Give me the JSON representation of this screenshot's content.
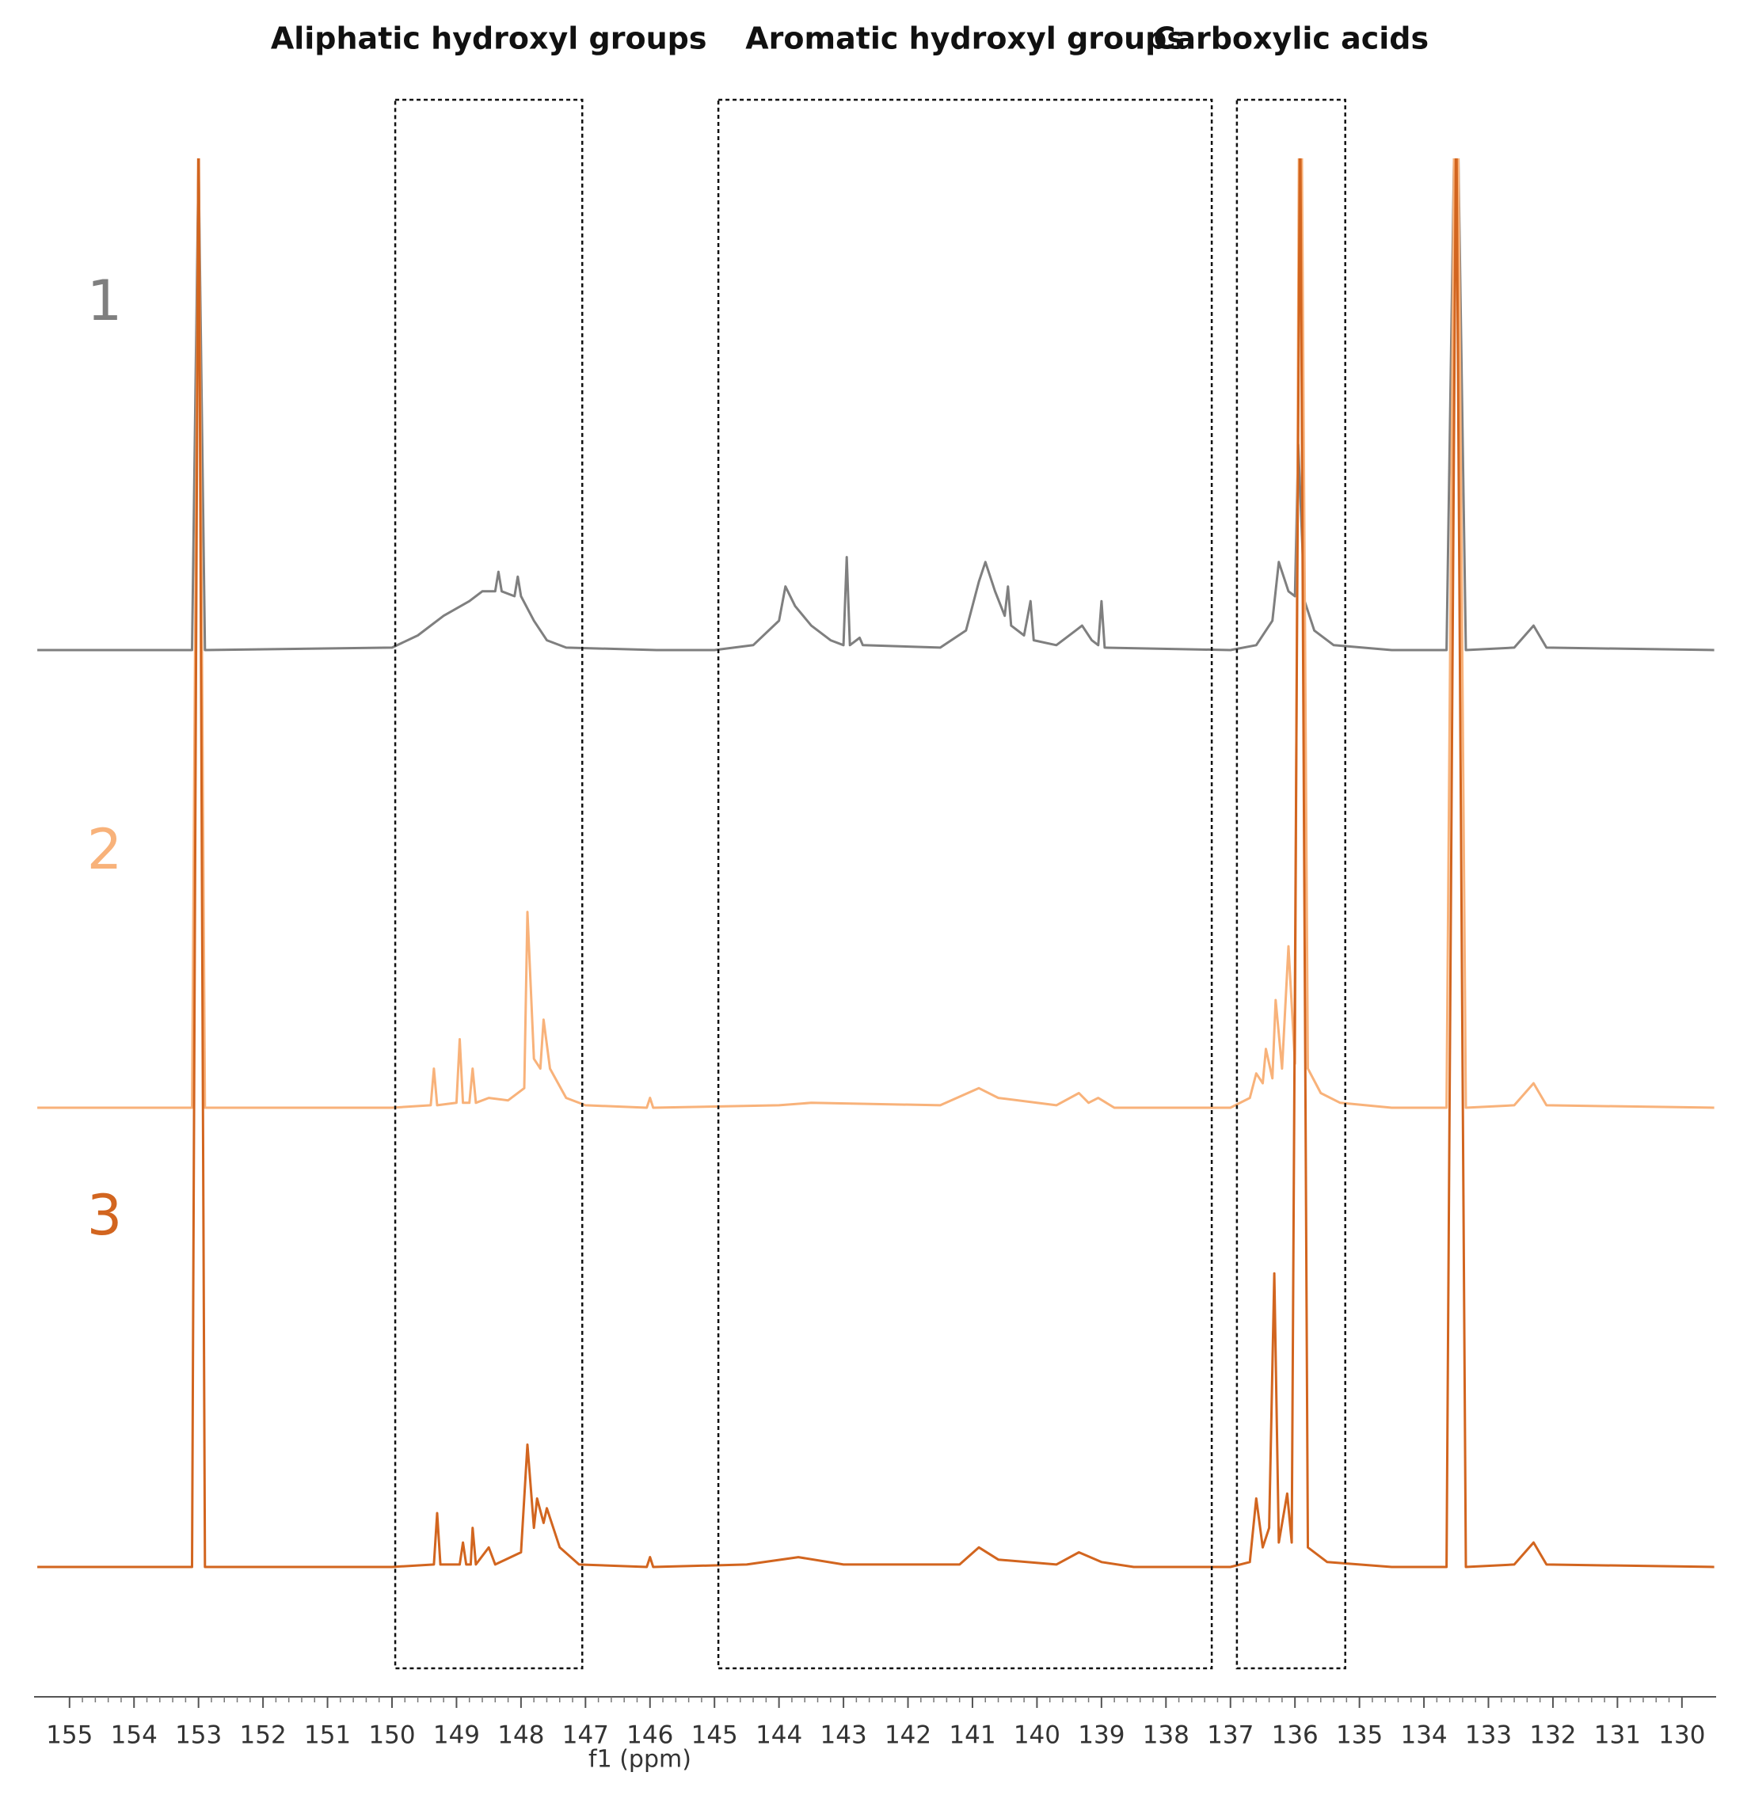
{
  "chart_data": {
    "type": "line",
    "xlabel": "f1 (ppm)",
    "xlim": [
      155.55,
      129.47
    ],
    "xticks": [
      155,
      154,
      153,
      152,
      151,
      150,
      149,
      148,
      147,
      146,
      145,
      144,
      143,
      142,
      141,
      140,
      139,
      138,
      137,
      136,
      135,
      134,
      133,
      132,
      131,
      130
    ],
    "regions": [
      {
        "label": "Aliphatic hydroxyl groups",
        "xrange": [
          149.95,
          147.05
        ]
      },
      {
        "label": "Aromatic hydroxyl groups",
        "xrange": [
          144.94,
          137.29
        ]
      },
      {
        "label": "Carboxylic acids",
        "xrange": [
          136.9,
          135.22
        ]
      }
    ],
    "series": [
      {
        "name": "1",
        "color": "#7f7f7f",
        "x": [
          155.5,
          153.1,
          153.0,
          152.9,
          150.0,
          149.6,
          149.2,
          148.8,
          148.6,
          148.4,
          148.35,
          148.3,
          148.1,
          148.05,
          148.0,
          147.8,
          147.6,
          147.3,
          145.9,
          145.0,
          144.4,
          144.0,
          143.9,
          143.75,
          143.5,
          143.2,
          143.0,
          142.95,
          142.9,
          142.75,
          142.7,
          141.5,
          141.1,
          140.9,
          140.8,
          140.65,
          140.5,
          140.45,
          140.4,
          140.2,
          140.1,
          140.05,
          139.7,
          139.4,
          139.3,
          139.15,
          139.05,
          139.0,
          138.95,
          137.0,
          136.6,
          136.35,
          136.25,
          136.1,
          136.0,
          135.95,
          135.85,
          135.7,
          135.4,
          134.5,
          133.65,
          133.5,
          133.35,
          132.6,
          132.3,
          132.1,
          129.5
        ],
        "values": [
          0,
          0,
          100,
          0,
          0.5,
          3,
          7,
          10,
          12,
          12,
          16,
          12,
          11,
          15,
          11,
          6,
          2,
          0.5,
          0,
          0,
          1,
          6,
          13,
          9,
          5,
          2,
          1,
          19,
          1,
          2.5,
          1,
          0.5,
          4,
          14,
          18,
          12,
          7,
          13,
          5,
          3,
          10,
          2,
          1,
          4,
          5,
          2,
          1,
          10,
          0.5,
          0,
          1,
          6,
          18,
          12,
          11,
          42,
          10,
          4,
          1,
          0,
          0,
          130,
          0,
          0.5,
          5,
          0.5,
          0
        ]
      },
      {
        "name": "2",
        "color": "#f8b27a",
        "x": [
          155.5,
          153.1,
          153.0,
          152.9,
          150.0,
          149.4,
          149.35,
          149.3,
          149.0,
          148.95,
          148.9,
          148.8,
          148.75,
          148.7,
          148.5,
          148.2,
          147.95,
          147.9,
          147.8,
          147.7,
          147.65,
          147.55,
          147.3,
          147.0,
          146.05,
          146.0,
          145.95,
          144.0,
          143.5,
          141.5,
          140.9,
          140.6,
          139.7,
          139.35,
          139.2,
          139.05,
          138.8,
          137.0,
          136.7,
          136.6,
          136.5,
          136.45,
          136.35,
          136.3,
          136.2,
          136.1,
          136.0,
          135.92,
          135.8,
          135.6,
          135.3,
          134.5,
          133.65,
          133.5,
          133.35,
          132.6,
          132.3,
          132.1,
          129.5
        ],
        "values": [
          0,
          0,
          200,
          0,
          0,
          0.5,
          8,
          0.5,
          1,
          14,
          1,
          1,
          8,
          1,
          2,
          1.5,
          4,
          40,
          10,
          8,
          18,
          8,
          2,
          0.5,
          0,
          2,
          0,
          0.5,
          1,
          0.5,
          4,
          2,
          0.5,
          3,
          1,
          2,
          0,
          0,
          2,
          7,
          5,
          12,
          6,
          22,
          8,
          33,
          9,
          250,
          8,
          3,
          1,
          0,
          0,
          250,
          0,
          0.5,
          5,
          0.5,
          0
        ]
      },
      {
        "name": "3",
        "color": "#d2651f",
        "x": [
          155.5,
          153.1,
          153.0,
          152.9,
          150.0,
          149.35,
          149.3,
          149.25,
          148.95,
          148.9,
          148.85,
          148.78,
          148.75,
          148.7,
          148.5,
          148.4,
          148.0,
          147.9,
          147.8,
          147.75,
          147.65,
          147.6,
          147.4,
          147.1,
          146.05,
          146.0,
          145.95,
          144.5,
          143.7,
          143.0,
          141.2,
          140.9,
          140.6,
          139.7,
          139.35,
          139.0,
          138.5,
          137.0,
          136.7,
          136.6,
          136.5,
          136.4,
          136.32,
          136.25,
          136.12,
          136.05,
          135.92,
          135.8,
          135.5,
          134.5,
          133.65,
          133.5,
          133.35,
          132.6,
          132.3,
          132.1,
          129.5
        ],
        "values": [
          0,
          0,
          300,
          0,
          0,
          0.5,
          11,
          0.5,
          0.5,
          5,
          0.5,
          0.5,
          8,
          0.5,
          4,
          0.5,
          3,
          25,
          8,
          14,
          9,
          12,
          4,
          0.5,
          0,
          2,
          0,
          0.5,
          2,
          0.5,
          0.5,
          4,
          1.5,
          0.5,
          3,
          1,
          0,
          0,
          1,
          14,
          4,
          8,
          60,
          5,
          15,
          5,
          300,
          4,
          1,
          0,
          0,
          300,
          0,
          0.5,
          5,
          0.5,
          0
        ]
      }
    ]
  }
}
